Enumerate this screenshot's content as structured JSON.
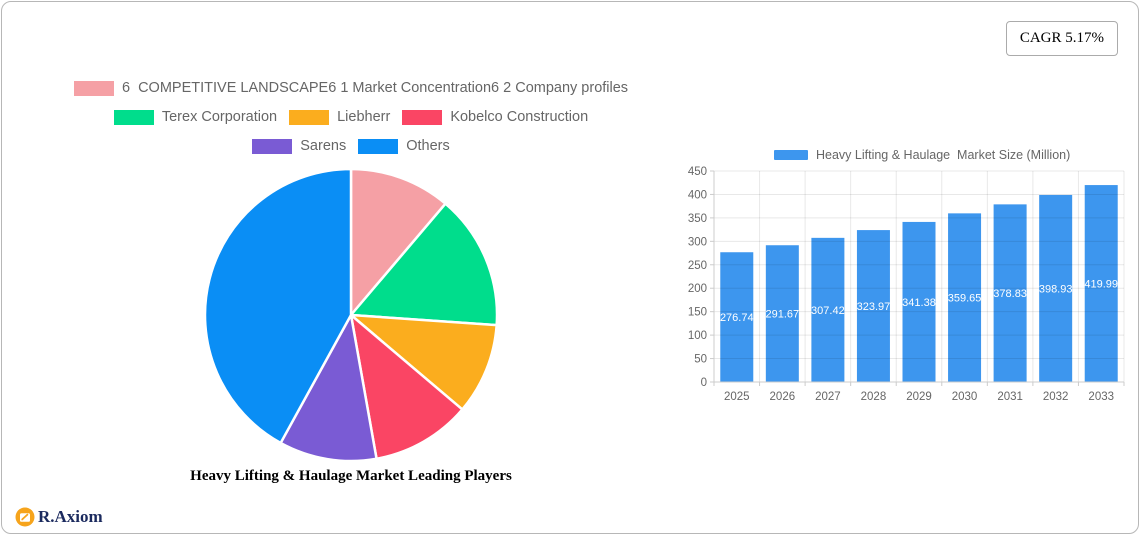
{
  "badge": {
    "label": "CAGR 5.17%"
  },
  "logo": {
    "text": "R.Axiom",
    "icon_color": "#F6A41C",
    "text_color": "#1B2A5E"
  },
  "chart_data": [
    {
      "type": "pie",
      "title": "Heavy Lifting & Haulage Market Leading Players",
      "labels": [
        "6  COMPETITIVE LANDSCAPE6 1 Market Concentration6 2 Company profiles",
        "Terex Corporation",
        "Liebherr",
        "Kobelco Construction",
        "Sarens",
        "Others"
      ],
      "values_percent": [
        11.2,
        14.9,
        10.1,
        11.0,
        10.8,
        42.0
      ],
      "colors": [
        "#F5A0A5",
        "#00DD8C",
        "#FBAD1E",
        "#FA4564",
        "#7A5BD4",
        "#0A8EF5"
      ],
      "start_angle_deg": -90,
      "direction": "clockwise",
      "slice_border_color": "#FFFFFF",
      "legend_rows": [
        [
          0
        ],
        [
          1,
          2,
          3
        ],
        [
          4,
          5
        ]
      ],
      "legend_position": "top-center",
      "legend_text_color": "#666666"
    },
    {
      "type": "bar",
      "legend": "Heavy Lifting & Haulage  Market Size (Million)",
      "categories": [
        "2025",
        "2026",
        "2027",
        "2028",
        "2029",
        "2030",
        "2031",
        "2032",
        "2033"
      ],
      "values": [
        276.74,
        291.67,
        307.42,
        323.97,
        341.38,
        359.65,
        378.83,
        398.93,
        419.99
      ],
      "bar_color": "#3D96EE",
      "value_label_color": "#FFFFFF",
      "axis_label_color": "#666666",
      "grid_color": "#E8E8E8",
      "axis_line_color": "#CCCCCC",
      "ylim": [
        0,
        450
      ],
      "ytick_step": 50,
      "grid": true,
      "legend_position": "top-center"
    }
  ]
}
